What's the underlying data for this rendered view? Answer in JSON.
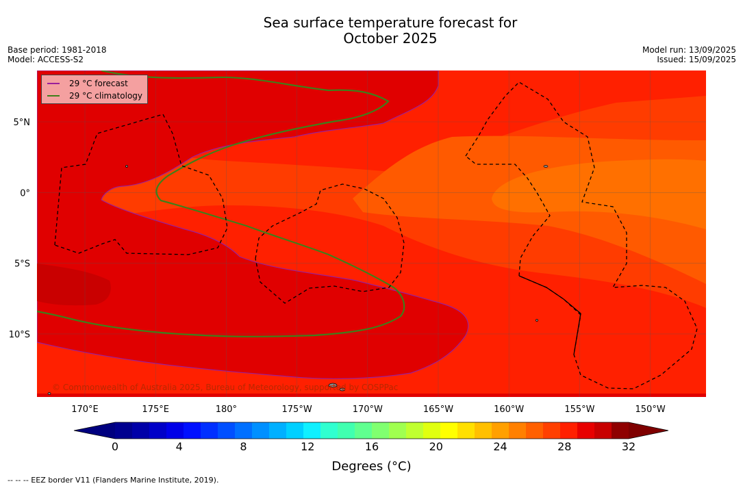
{
  "title_line1": "Sea surface temperature forecast for",
  "title_line2": "October 2025",
  "meta_left": [
    "Base period: 1981-2018",
    "Model: ACCESS-S2"
  ],
  "meta_right": [
    "Model run: 13/09/2025",
    "Issued: 15/09/2025"
  ],
  "legend": [
    {
      "label": "29 °C  forecast",
      "color": "#9a1f9a"
    },
    {
      "label": "29 °C  climatology",
      "color": "#3f7f1a"
    }
  ],
  "lon_ticks": [
    "170°E",
    "175°E",
    "180°",
    "175°W",
    "170°W",
    "165°W",
    "160°W",
    "155°W",
    "150°W"
  ],
  "lat_ticks": [
    "5°N",
    "0°",
    "5°S",
    "10°S"
  ],
  "copyright": "© Commonwealth of Australia 2025, Bureau of Meteorology, supported by COSPPac",
  "colorbar": {
    "ticks": [
      "0",
      "4",
      "8",
      "12",
      "16",
      "20",
      "24",
      "28",
      "32"
    ],
    "label": "Degrees (°C)",
    "colors": [
      "#00008f",
      "#0000a8",
      "#0000c8",
      "#0000e8",
      "#0010ff",
      "#0030ff",
      "#0050ff",
      "#0070ff",
      "#0090ff",
      "#00b0ff",
      "#00d0ff",
      "#10f0ff",
      "#30ffd0",
      "#40ffb0",
      "#60ff90",
      "#80ff70",
      "#a0ff50",
      "#c0ff30",
      "#e0ff10",
      "#ffff00",
      "#ffe000",
      "#ffc000",
      "#ffa000",
      "#ff8000",
      "#ff6000",
      "#ff4000",
      "#ff2000",
      "#e80000",
      "#c80000",
      "#8f0000"
    ],
    "under_color": "#00007f",
    "over_color": "#7f0000"
  },
  "footnote": "--  --  -- EEZ border V11 (Flanders Marine Institute, 2019).",
  "palette": {
    "dark_red": "#e00000",
    "darker_red": "#c90000",
    "red": "#ff2000",
    "red_orange": "#ff3c00",
    "orange": "#ff5a00",
    "light_orange": "#ff7000"
  }
}
